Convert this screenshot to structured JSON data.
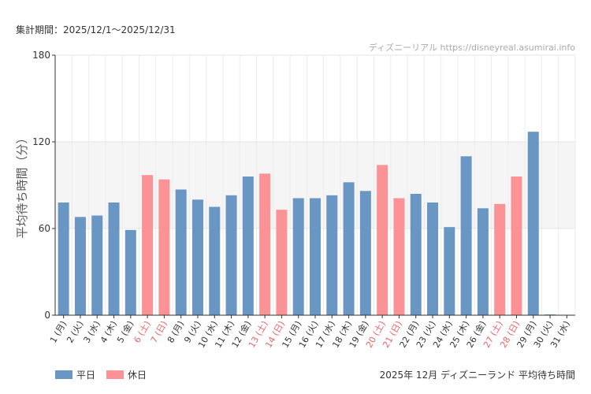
{
  "period_text": "集計期間：2025/12/1〜2025/12/31",
  "watermark": "ディズニーリアル https://disneyreal.asumirai.info",
  "footer_title": "2025年 12月 ディズニーランド 平均待ち時間",
  "colors": {
    "weekday": "#6a96c4",
    "holiday": "#fb9296",
    "holiday_label": "#e8646a",
    "band": "#f5f5f5"
  },
  "legend": [
    {
      "label": "平日",
      "color": "#6a96c4"
    },
    {
      "label": "休日",
      "color": "#fb9296"
    }
  ],
  "chart_data": {
    "type": "bar",
    "title": "2025年 12月 ディズニーランド 平均待ち時間",
    "ylabel": "平均待ち時間（分）",
    "xlabel": "",
    "ylim": [
      0,
      180
    ],
    "yticks": [
      0,
      60,
      120,
      180
    ],
    "band": [
      60,
      120
    ],
    "categories": [
      "1 (月)",
      "2 (火)",
      "3 (水)",
      "4 (木)",
      "5 (金)",
      "6 (土)",
      "7 (日)",
      "8 (月)",
      "9 (火)",
      "10 (水)",
      "11 (木)",
      "12 (金)",
      "13 (土)",
      "14 (日)",
      "15 (月)",
      "16 (火)",
      "17 (水)",
      "18 (木)",
      "19 (金)",
      "20 (土)",
      "21 (日)",
      "22 (月)",
      "23 (火)",
      "24 (水)",
      "25 (木)",
      "26 (金)",
      "27 (土)",
      "28 (日)",
      "29 (月)",
      "30 (火)",
      "31 (水)"
    ],
    "day_type": [
      "weekday",
      "weekday",
      "weekday",
      "weekday",
      "weekday",
      "holiday",
      "holiday",
      "weekday",
      "weekday",
      "weekday",
      "weekday",
      "weekday",
      "holiday",
      "holiday",
      "weekday",
      "weekday",
      "weekday",
      "weekday",
      "weekday",
      "holiday",
      "holiday",
      "weekday",
      "weekday",
      "weekday",
      "weekday",
      "weekday",
      "holiday",
      "holiday",
      "weekday",
      "weekday",
      "weekday"
    ],
    "values": [
      78,
      68,
      69,
      78,
      59,
      97,
      94,
      87,
      80,
      75,
      83,
      96,
      98,
      73,
      81,
      81,
      83,
      92,
      86,
      104,
      81,
      84,
      78,
      61,
      110,
      74,
      77,
      96,
      127,
      0.5,
      0.3
    ]
  }
}
